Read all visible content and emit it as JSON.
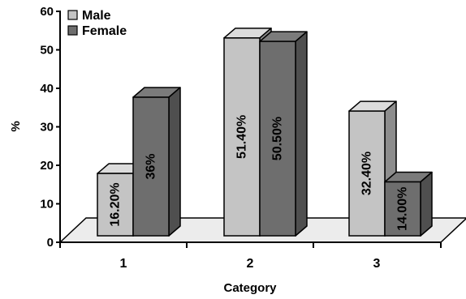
{
  "chart_data": {
    "type": "bar",
    "style": "3d-clustered-column",
    "categories": [
      "1",
      "2",
      "3"
    ],
    "xlabel": "Category",
    "ylabel": "%",
    "ylim": [
      0,
      60
    ],
    "yticks": [
      "0",
      "10",
      "20",
      "30",
      "40",
      "50",
      "60"
    ],
    "legend_position": "top-left",
    "grid": false,
    "series": [
      {
        "name": "Male",
        "color": "#c4c4c4",
        "values": [
          16.2,
          51.4,
          32.4
        ],
        "labels": [
          "16.20%",
          "51.40%",
          "32.40%"
        ]
      },
      {
        "name": "Female",
        "color": "#6e6e6e",
        "values": [
          36,
          50.5,
          14.0
        ],
        "labels": [
          "36%",
          "50.50%",
          "14.00%"
        ]
      }
    ]
  }
}
